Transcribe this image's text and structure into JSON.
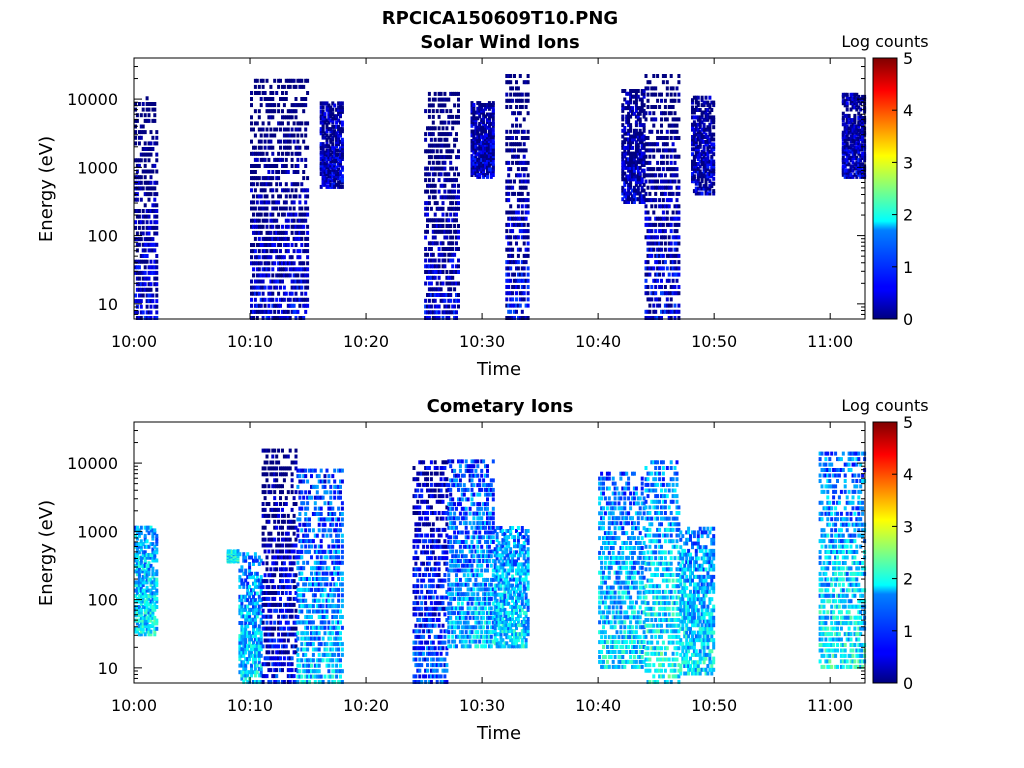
{
  "figure_title": "RPCICA150609T10.PNG",
  "colormap": {
    "name": "jet",
    "range": [
      0,
      5
    ],
    "label": "Log counts",
    "ticks": [
      "0",
      "1",
      "2",
      "3",
      "4",
      "5"
    ]
  },
  "chart_data": [
    {
      "type": "heatmap",
      "title": "Solar Wind Ions",
      "xlabel": "Time",
      "ylabel": "Energy (eV)",
      "y_scale": "log",
      "ylim": [
        6,
        40000
      ],
      "xlim": [
        "10:00",
        "11:03"
      ],
      "x_ticks": [
        "10:00",
        "10:10",
        "10:20",
        "10:30",
        "10:40",
        "10:50",
        "11:00"
      ],
      "y_ticks": [
        "10",
        "100",
        "1000",
        "10000"
      ],
      "colorbar_label": "Log counts",
      "activity_bursts": [
        {
          "time_start": "10:00",
          "time_end": "10:02",
          "energy_min": 6,
          "energy_max": 12000,
          "level": 0.4
        },
        {
          "time_start": "10:10",
          "time_end": "10:15",
          "energy_min": 6,
          "energy_max": 22000,
          "level": 0.4
        },
        {
          "time_start": "10:16",
          "time_end": "10:18",
          "energy_min": 500,
          "energy_max": 9000,
          "level": 0.3
        },
        {
          "time_start": "10:25",
          "time_end": "10:28",
          "energy_min": 6,
          "energy_max": 14000,
          "level": 0.4
        },
        {
          "time_start": "10:29",
          "time_end": "10:31",
          "energy_min": 700,
          "energy_max": 9000,
          "level": 0.3
        },
        {
          "time_start": "10:32",
          "time_end": "10:34",
          "energy_min": 6,
          "energy_max": 26000,
          "level": 0.5
        },
        {
          "time_start": "10:42",
          "time_end": "10:44",
          "energy_min": 300,
          "energy_max": 14000,
          "level": 0.3
        },
        {
          "time_start": "10:44",
          "time_end": "10:47",
          "energy_min": 6,
          "energy_max": 26000,
          "level": 0.5
        },
        {
          "time_start": "10:48",
          "time_end": "10:50",
          "energy_min": 400,
          "energy_max": 11000,
          "level": 0.3
        },
        {
          "time_start": "11:01",
          "time_end": "11:03",
          "energy_min": 700,
          "energy_max": 12000,
          "level": 0.3
        }
      ]
    },
    {
      "type": "heatmap",
      "title": "Cometary Ions",
      "xlabel": "Time",
      "ylabel": "Energy (eV)",
      "y_scale": "log",
      "ylim": [
        6,
        40000
      ],
      "xlim": [
        "10:00",
        "11:03"
      ],
      "x_ticks": [
        "10:00",
        "10:10",
        "10:20",
        "10:30",
        "10:40",
        "10:50",
        "11:00"
      ],
      "y_ticks": [
        "10",
        "100",
        "1000",
        "10000"
      ],
      "colorbar_label": "Log counts",
      "activity_bursts": [
        {
          "time_start": "10:00",
          "time_end": "10:02",
          "energy_min": 30,
          "energy_max": 1200,
          "level": 1.8
        },
        {
          "time_start": "10:08",
          "time_end": "10:09",
          "energy_min": 350,
          "energy_max": 500,
          "level": 1.9
        },
        {
          "time_start": "10:09",
          "time_end": "10:11",
          "energy_min": 6,
          "energy_max": 500,
          "level": 1.7
        },
        {
          "time_start": "10:11",
          "time_end": "10:14",
          "energy_min": 6,
          "energy_max": 18000,
          "level": 0.6
        },
        {
          "time_start": "10:14",
          "time_end": "10:18",
          "energy_min": 6,
          "energy_max": 9000,
          "level": 1.6
        },
        {
          "time_start": "10:24",
          "time_end": "10:27",
          "energy_min": 6,
          "energy_max": 12000,
          "level": 1.0
        },
        {
          "time_start": "10:27",
          "time_end": "10:29",
          "energy_min": 20,
          "energy_max": 12000,
          "level": 1.5
        },
        {
          "time_start": "10:29",
          "time_end": "10:31",
          "energy_min": 20,
          "energy_max": 12000,
          "level": 1.6
        },
        {
          "time_start": "10:31",
          "time_end": "10:34",
          "energy_min": 20,
          "energy_max": 1200,
          "level": 1.7
        },
        {
          "time_start": "10:40",
          "time_end": "10:44",
          "energy_min": 10,
          "energy_max": 8000,
          "level": 1.8
        },
        {
          "time_start": "10:44",
          "time_end": "10:47",
          "energy_min": 6,
          "energy_max": 12000,
          "level": 2.0
        },
        {
          "time_start": "10:47",
          "time_end": "10:50",
          "energy_min": 8,
          "energy_max": 1200,
          "level": 1.8
        },
        {
          "time_start": "10:59",
          "time_end": "11:03",
          "energy_min": 10,
          "energy_max": 16000,
          "level": 1.9
        }
      ]
    }
  ]
}
